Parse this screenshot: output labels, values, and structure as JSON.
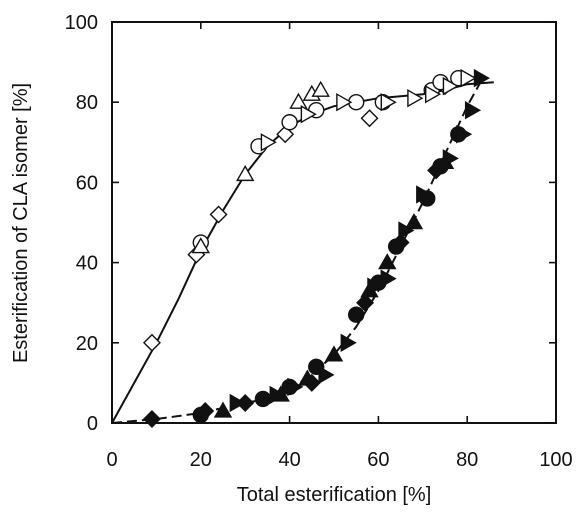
{
  "chart_data": {
    "type": "scatter",
    "title": "",
    "xlabel": "Total esterification [%]",
    "ylabel": "Esterification of CLA isomer [%]",
    "xlim": [
      0,
      100
    ],
    "ylim": [
      0,
      100
    ],
    "xticks": [
      "0",
      "20",
      "40",
      "60",
      "80",
      "100"
    ],
    "yticks": [
      "0",
      "20",
      "40",
      "60",
      "80",
      "100"
    ],
    "grid": false,
    "legend": "none",
    "series": [
      {
        "marker": "open-diamond",
        "fill": "open",
        "points": [
          [
            9,
            20
          ],
          [
            19,
            42
          ],
          [
            24,
            52
          ],
          [
            39,
            72
          ],
          [
            58,
            76
          ],
          [
            75,
            84
          ]
        ]
      },
      {
        "marker": "open-circle",
        "fill": "open",
        "points": [
          [
            20,
            45
          ],
          [
            33,
            69
          ],
          [
            40,
            75
          ],
          [
            46,
            78
          ],
          [
            55,
            80
          ],
          [
            61,
            80
          ],
          [
            72,
            83
          ],
          [
            74,
            85
          ],
          [
            78,
            86
          ]
        ]
      },
      {
        "marker": "open-triangle-up",
        "fill": "open",
        "points": [
          [
            20,
            44
          ],
          [
            30,
            62
          ],
          [
            42,
            80
          ],
          [
            45,
            82
          ],
          [
            47,
            83
          ]
        ]
      },
      {
        "marker": "open-triangle-right",
        "fill": "open",
        "points": [
          [
            35,
            70
          ],
          [
            44,
            77
          ],
          [
            52,
            80
          ],
          [
            62,
            80
          ],
          [
            68,
            81
          ],
          [
            72,
            82
          ],
          [
            76,
            84
          ],
          [
            80,
            86
          ]
        ]
      },
      {
        "marker": "filled-diamond",
        "fill": "filled",
        "points": [
          [
            9,
            1
          ],
          [
            21,
            3
          ],
          [
            30,
            5
          ],
          [
            45,
            10
          ],
          [
            57,
            30
          ],
          [
            65,
            45
          ],
          [
            73,
            63
          ]
        ]
      },
      {
        "marker": "filled-circle",
        "fill": "filled",
        "points": [
          [
            20,
            2
          ],
          [
            34,
            6
          ],
          [
            40,
            9
          ],
          [
            46,
            14
          ],
          [
            55,
            27
          ],
          [
            60,
            35
          ],
          [
            64,
            44
          ],
          [
            71,
            56
          ],
          [
            74,
            64
          ],
          [
            78,
            72
          ]
        ]
      },
      {
        "marker": "filled-triangle-up",
        "fill": "filled",
        "points": [
          [
            25,
            3
          ],
          [
            38,
            7
          ],
          [
            44,
            11
          ],
          [
            50,
            17
          ],
          [
            58,
            33
          ],
          [
            62,
            40
          ],
          [
            68,
            50
          ],
          [
            75,
            65
          ]
        ]
      },
      {
        "marker": "filled-triangle-right",
        "fill": "filled",
        "points": [
          [
            28,
            5
          ],
          [
            37,
            7
          ],
          [
            41,
            9
          ],
          [
            48,
            12
          ],
          [
            53,
            20
          ],
          [
            59,
            34
          ],
          [
            62,
            36
          ],
          [
            66,
            48
          ],
          [
            70,
            57
          ],
          [
            76,
            66
          ],
          [
            79,
            72
          ],
          [
            81,
            78
          ],
          [
            83,
            86
          ]
        ]
      }
    ],
    "curves": [
      {
        "style": "solid",
        "points": [
          [
            0,
            0
          ],
          [
            5,
            10
          ],
          [
            10,
            20
          ],
          [
            15,
            31
          ],
          [
            20,
            43
          ],
          [
            25,
            53
          ],
          [
            30,
            62
          ],
          [
            35,
            69
          ],
          [
            40,
            74
          ],
          [
            45,
            77
          ],
          [
            50,
            79
          ],
          [
            55,
            80
          ],
          [
            60,
            81
          ],
          [
            65,
            81.5
          ],
          [
            70,
            82
          ],
          [
            75,
            83
          ],
          [
            80,
            84.5
          ],
          [
            86,
            85
          ]
        ]
      },
      {
        "style": "dashed",
        "points": [
          [
            0,
            0
          ],
          [
            10,
            1
          ],
          [
            20,
            2.5
          ],
          [
            30,
            5
          ],
          [
            35,
            6
          ],
          [
            40,
            8.5
          ],
          [
            45,
            12
          ],
          [
            50,
            17
          ],
          [
            55,
            24
          ],
          [
            60,
            33
          ],
          [
            65,
            44
          ],
          [
            70,
            55
          ],
          [
            75,
            67
          ],
          [
            80,
            79
          ],
          [
            83,
            85
          ]
        ]
      }
    ]
  }
}
